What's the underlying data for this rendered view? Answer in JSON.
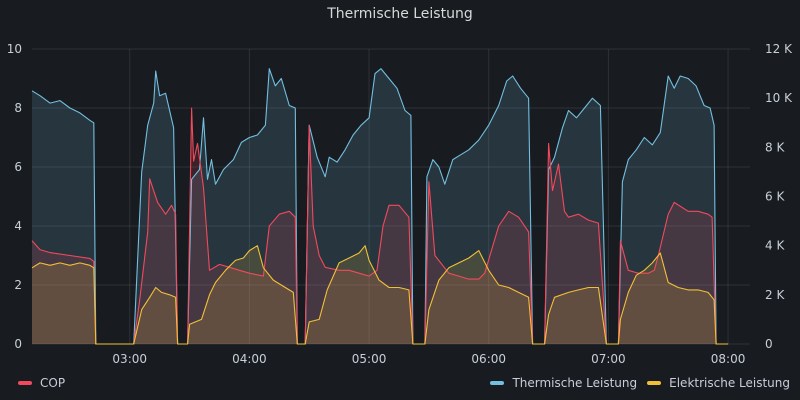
{
  "panel": {
    "title": "Thermische Leistung"
  },
  "legend": {
    "left": [
      {
        "name": "COP",
        "color": "#f2495c"
      }
    ],
    "right": [
      {
        "name": "Thermische Leistung",
        "color": "#73bfe0"
      },
      {
        "name": "Elektrische Leistung",
        "color": "#f2c037"
      }
    ]
  },
  "chart_data": {
    "type": "area",
    "title": "Thermische Leistung",
    "x_time_range": [
      "02:11",
      "08:11"
    ],
    "x_ticks": [
      "03:00",
      "04:00",
      "05:00",
      "06:00",
      "07:00",
      "08:00"
    ],
    "y_left": {
      "ticks": [
        "0",
        "2",
        "4",
        "6",
        "8",
        "10"
      ],
      "range": [
        0,
        10
      ]
    },
    "y_right": {
      "ticks": [
        "0",
        "2 K",
        "4 K",
        "6 K",
        "8 K",
        "10 K",
        "12 K"
      ],
      "range": [
        0,
        12000
      ]
    },
    "grid": true,
    "legend_placement": "bottom",
    "series": [
      {
        "name": "COP",
        "axis": "left",
        "color": "#f2495c",
        "points": [
          [
            "02:11",
            3.5
          ],
          [
            "02:15",
            3.2
          ],
          [
            "02:20",
            3.1
          ],
          [
            "02:30",
            3.0
          ],
          [
            "02:40",
            2.9
          ],
          [
            "02:42",
            2.8
          ],
          [
            "02:43",
            0
          ],
          [
            "03:02",
            0
          ],
          [
            "03:05",
            1.5
          ],
          [
            "03:09",
            3.8
          ],
          [
            "03:10",
            5.6
          ],
          [
            "03:14",
            4.8
          ],
          [
            "03:18",
            4.4
          ],
          [
            "03:21",
            4.7
          ],
          [
            "03:23",
            4.4
          ],
          [
            "03:24",
            0
          ],
          [
            "03:29",
            0
          ],
          [
            "03:31",
            8.0
          ],
          [
            "03:32",
            6.2
          ],
          [
            "03:34",
            6.8
          ],
          [
            "03:37",
            5.3
          ],
          [
            "03:40",
            2.5
          ],
          [
            "03:45",
            2.7
          ],
          [
            "03:50",
            2.6
          ],
          [
            "03:55",
            2.5
          ],
          [
            "04:00",
            2.4
          ],
          [
            "04:07",
            2.3
          ],
          [
            "04:10",
            4.0
          ],
          [
            "04:15",
            4.4
          ],
          [
            "04:20",
            4.5
          ],
          [
            "04:23",
            4.3
          ],
          [
            "04:24",
            0
          ],
          [
            "04:28",
            0
          ],
          [
            "04:30",
            7.4
          ],
          [
            "04:32",
            4.0
          ],
          [
            "04:35",
            3.0
          ],
          [
            "04:38",
            2.6
          ],
          [
            "04:45",
            2.5
          ],
          [
            "04:50",
            2.5
          ],
          [
            "04:55",
            2.4
          ],
          [
            "05:00",
            2.3
          ],
          [
            "05:04",
            2.5
          ],
          [
            "05:07",
            4.0
          ],
          [
            "05:10",
            4.7
          ],
          [
            "05:15",
            4.7
          ],
          [
            "05:20",
            4.3
          ],
          [
            "05:22",
            0
          ],
          [
            "05:28",
            0
          ],
          [
            "05:30",
            5.5
          ],
          [
            "05:33",
            3.0
          ],
          [
            "05:40",
            2.4
          ],
          [
            "05:45",
            2.3
          ],
          [
            "05:50",
            2.2
          ],
          [
            "05:55",
            2.2
          ],
          [
            "05:58",
            2.4
          ],
          [
            "06:05",
            4.0
          ],
          [
            "06:10",
            4.5
          ],
          [
            "06:15",
            4.3
          ],
          [
            "06:20",
            3.8
          ],
          [
            "06:22",
            0
          ],
          [
            "06:28",
            0
          ],
          [
            "06:30",
            6.8
          ],
          [
            "06:32",
            5.2
          ],
          [
            "06:35",
            6.1
          ],
          [
            "06:38",
            4.5
          ],
          [
            "06:40",
            4.3
          ],
          [
            "06:45",
            4.4
          ],
          [
            "06:50",
            4.2
          ],
          [
            "06:55",
            4.1
          ],
          [
            "06:59",
            0
          ],
          [
            "07:05",
            0
          ],
          [
            "07:06",
            3.5
          ],
          [
            "07:10",
            2.5
          ],
          [
            "07:15",
            2.4
          ],
          [
            "07:20",
            2.4
          ],
          [
            "07:23",
            2.5
          ],
          [
            "07:25",
            3.0
          ],
          [
            "07:30",
            4.4
          ],
          [
            "07:33",
            4.8
          ],
          [
            "07:40",
            4.5
          ],
          [
            "07:45",
            4.5
          ],
          [
            "07:50",
            4.4
          ],
          [
            "07:52",
            4.3
          ],
          [
            "07:54",
            0
          ],
          [
            "08:00",
            0
          ]
        ]
      },
      {
        "name": "Thermische Leistung",
        "axis": "right",
        "color": "#73bfe0",
        "points": [
          [
            "02:11",
            10.3
          ],
          [
            "02:15",
            10.1
          ],
          [
            "02:20",
            9.8
          ],
          [
            "02:25",
            9.9
          ],
          [
            "02:30",
            9.6
          ],
          [
            "02:35",
            9.4
          ],
          [
            "02:40",
            9.1
          ],
          [
            "02:42",
            9.0
          ],
          [
            "02:43",
            0
          ],
          [
            "03:02",
            0
          ],
          [
            "03:06",
            7.0
          ],
          [
            "03:09",
            8.9
          ],
          [
            "03:12",
            9.8
          ],
          [
            "03:13",
            11.1
          ],
          [
            "03:15",
            10.1
          ],
          [
            "03:18",
            10.2
          ],
          [
            "03:22",
            8.8
          ],
          [
            "03:24",
            0
          ],
          [
            "03:29",
            0
          ],
          [
            "03:31",
            6.7
          ],
          [
            "03:35",
            7.1
          ],
          [
            "03:37",
            9.2
          ],
          [
            "03:39",
            6.7
          ],
          [
            "03:41",
            7.5
          ],
          [
            "03:43",
            6.5
          ],
          [
            "03:47",
            7.1
          ],
          [
            "03:52",
            7.5
          ],
          [
            "03:56",
            8.2
          ],
          [
            "04:00",
            8.4
          ],
          [
            "04:04",
            8.5
          ],
          [
            "04:08",
            8.9
          ],
          [
            "04:10",
            11.2
          ],
          [
            "04:13",
            10.5
          ],
          [
            "04:16",
            10.8
          ],
          [
            "04:20",
            9.7
          ],
          [
            "04:23",
            9.6
          ],
          [
            "04:24",
            0
          ],
          [
            "04:28",
            0
          ],
          [
            "04:30",
            8.9
          ],
          [
            "04:34",
            7.6
          ],
          [
            "04:38",
            6.8
          ],
          [
            "04:40",
            7.6
          ],
          [
            "04:44",
            7.4
          ],
          [
            "04:48",
            7.9
          ],
          [
            "04:52",
            8.5
          ],
          [
            "04:56",
            8.9
          ],
          [
            "05:00",
            9.2
          ],
          [
            "05:03",
            11.0
          ],
          [
            "05:06",
            11.2
          ],
          [
            "05:10",
            10.8
          ],
          [
            "05:14",
            10.4
          ],
          [
            "05:18",
            9.5
          ],
          [
            "05:21",
            9.3
          ],
          [
            "05:22",
            0
          ],
          [
            "05:28",
            0
          ],
          [
            "05:29",
            6.8
          ],
          [
            "05:32",
            7.5
          ],
          [
            "05:35",
            7.2
          ],
          [
            "05:38",
            6.5
          ],
          [
            "05:42",
            7.5
          ],
          [
            "05:46",
            7.7
          ],
          [
            "05:50",
            7.9
          ],
          [
            "05:55",
            8.3
          ],
          [
            "06:00",
            8.9
          ],
          [
            "06:05",
            9.7
          ],
          [
            "06:09",
            10.7
          ],
          [
            "06:12",
            10.9
          ],
          [
            "06:16",
            10.4
          ],
          [
            "06:20",
            10.0
          ],
          [
            "06:22",
            0
          ],
          [
            "06:28",
            0
          ],
          [
            "06:30",
            7.1
          ],
          [
            "06:33",
            7.6
          ],
          [
            "06:37",
            8.8
          ],
          [
            "06:40",
            9.5
          ],
          [
            "06:44",
            9.2
          ],
          [
            "06:48",
            9.6
          ],
          [
            "06:52",
            10.0
          ],
          [
            "06:56",
            9.7
          ],
          [
            "06:59",
            0
          ],
          [
            "07:05",
            0
          ],
          [
            "07:07",
            6.6
          ],
          [
            "07:10",
            7.5
          ],
          [
            "07:14",
            7.9
          ],
          [
            "07:18",
            8.4
          ],
          [
            "07:22",
            8.1
          ],
          [
            "07:26",
            8.6
          ],
          [
            "07:30",
            10.9
          ],
          [
            "07:33",
            10.4
          ],
          [
            "07:36",
            10.9
          ],
          [
            "07:40",
            10.8
          ],
          [
            "07:44",
            10.5
          ],
          [
            "07:48",
            9.7
          ],
          [
            "07:51",
            9.6
          ],
          [
            "07:53",
            8.9
          ],
          [
            "07:54",
            0
          ],
          [
            "08:00",
            0
          ]
        ]
      },
      {
        "name": "Elektrische Leistung",
        "axis": "right",
        "color": "#f2c037",
        "points": [
          [
            "02:11",
            3.1
          ],
          [
            "02:15",
            3.3
          ],
          [
            "02:20",
            3.2
          ],
          [
            "02:25",
            3.3
          ],
          [
            "02:30",
            3.2
          ],
          [
            "02:35",
            3.3
          ],
          [
            "02:40",
            3.2
          ],
          [
            "02:42",
            3.1
          ],
          [
            "02:43",
            0
          ],
          [
            "03:02",
            0
          ],
          [
            "03:06",
            1.4
          ],
          [
            "03:10",
            1.9
          ],
          [
            "03:13",
            2.3
          ],
          [
            "03:16",
            2.1
          ],
          [
            "03:20",
            2.0
          ],
          [
            "03:23",
            1.9
          ],
          [
            "03:24",
            0
          ],
          [
            "03:29",
            0
          ],
          [
            "03:30",
            0.8
          ],
          [
            "03:36",
            1.0
          ],
          [
            "03:40",
            2.0
          ],
          [
            "03:43",
            2.5
          ],
          [
            "03:48",
            3.0
          ],
          [
            "03:53",
            3.4
          ],
          [
            "03:57",
            3.5
          ],
          [
            "04:00",
            3.8
          ],
          [
            "04:04",
            4.0
          ],
          [
            "04:07",
            3.1
          ],
          [
            "04:12",
            2.6
          ],
          [
            "04:18",
            2.3
          ],
          [
            "04:22",
            2.1
          ],
          [
            "04:24",
            0
          ],
          [
            "04:28",
            0
          ],
          [
            "04:30",
            0.9
          ],
          [
            "04:35",
            1.0
          ],
          [
            "04:39",
            2.2
          ],
          [
            "04:45",
            3.3
          ],
          [
            "04:50",
            3.5
          ],
          [
            "04:55",
            3.7
          ],
          [
            "04:58",
            4.0
          ],
          [
            "05:00",
            3.4
          ],
          [
            "05:05",
            2.6
          ],
          [
            "05:10",
            2.3
          ],
          [
            "05:15",
            2.3
          ],
          [
            "05:20",
            2.2
          ],
          [
            "05:22",
            0
          ],
          [
            "05:28",
            0
          ],
          [
            "05:30",
            1.4
          ],
          [
            "05:35",
            2.6
          ],
          [
            "05:40",
            3.1
          ],
          [
            "05:45",
            3.3
          ],
          [
            "05:50",
            3.5
          ],
          [
            "05:55",
            3.8
          ],
          [
            "06:00",
            3.0
          ],
          [
            "06:05",
            2.4
          ],
          [
            "06:10",
            2.3
          ],
          [
            "06:15",
            2.1
          ],
          [
            "06:20",
            1.9
          ],
          [
            "06:22",
            0
          ],
          [
            "06:28",
            0
          ],
          [
            "06:30",
            1.2
          ],
          [
            "06:33",
            1.9
          ],
          [
            "06:40",
            2.1
          ],
          [
            "06:45",
            2.2
          ],
          [
            "06:50",
            2.3
          ],
          [
            "06:55",
            2.3
          ],
          [
            "06:59",
            0
          ],
          [
            "07:05",
            0
          ],
          [
            "07:06",
            1.0
          ],
          [
            "07:10",
            2.1
          ],
          [
            "07:14",
            2.8
          ],
          [
            "07:18",
            3.0
          ],
          [
            "07:22",
            3.3
          ],
          [
            "07:26",
            3.7
          ],
          [
            "07:30",
            2.5
          ],
          [
            "07:35",
            2.3
          ],
          [
            "07:40",
            2.2
          ],
          [
            "07:45",
            2.2
          ],
          [
            "07:50",
            2.1
          ],
          [
            "07:53",
            1.8
          ],
          [
            "07:54",
            0
          ],
          [
            "08:00",
            0
          ]
        ]
      }
    ]
  }
}
